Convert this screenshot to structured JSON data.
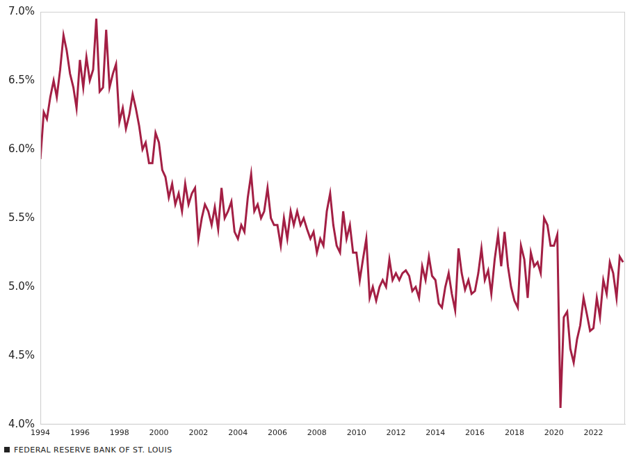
{
  "chart_data": {
    "type": "line",
    "annotations": [
      "FEDERAL RESERVE BANK OF ST. LOUIS"
    ],
    "x": [
      1994.0,
      1994.17,
      1994.33,
      1994.5,
      1994.67,
      1994.83,
      1995.0,
      1995.17,
      1995.33,
      1995.5,
      1995.67,
      1995.83,
      1996.0,
      1996.17,
      1996.33,
      1996.5,
      1996.67,
      1996.83,
      1997.0,
      1997.17,
      1997.33,
      1997.5,
      1997.67,
      1997.83,
      1998.0,
      1998.17,
      1998.33,
      1998.5,
      1998.67,
      1998.83,
      1999.0,
      1999.17,
      1999.33,
      1999.5,
      1999.67,
      1999.83,
      2000.0,
      2000.17,
      2000.33,
      2000.5,
      2000.67,
      2000.83,
      2001.0,
      2001.17,
      2001.33,
      2001.5,
      2001.67,
      2001.83,
      2002.0,
      2002.17,
      2002.33,
      2002.5,
      2002.67,
      2002.83,
      2003.0,
      2003.17,
      2003.33,
      2003.5,
      2003.67,
      2003.83,
      2004.0,
      2004.17,
      2004.33,
      2004.5,
      2004.67,
      2004.83,
      2005.0,
      2005.17,
      2005.33,
      2005.5,
      2005.67,
      2005.83,
      2006.0,
      2006.17,
      2006.33,
      2006.5,
      2006.67,
      2006.83,
      2007.0,
      2007.17,
      2007.33,
      2007.5,
      2007.67,
      2007.83,
      2008.0,
      2008.17,
      2008.33,
      2008.5,
      2008.67,
      2008.83,
      2009.0,
      2009.17,
      2009.33,
      2009.5,
      2009.67,
      2009.83,
      2010.0,
      2010.17,
      2010.33,
      2010.5,
      2010.67,
      2010.83,
      2011.0,
      2011.17,
      2011.33,
      2011.5,
      2011.67,
      2011.83,
      2012.0,
      2012.17,
      2012.33,
      2012.5,
      2012.67,
      2012.83,
      2013.0,
      2013.17,
      2013.33,
      2013.5,
      2013.67,
      2013.83,
      2014.0,
      2014.17,
      2014.33,
      2014.5,
      2014.67,
      2014.83,
      2015.0,
      2015.17,
      2015.33,
      2015.5,
      2015.67,
      2015.83,
      2016.0,
      2016.17,
      2016.33,
      2016.5,
      2016.67,
      2016.83,
      2017.0,
      2017.17,
      2017.33,
      2017.5,
      2017.67,
      2017.83,
      2018.0,
      2018.17,
      2018.33,
      2018.5,
      2018.67,
      2018.83,
      2019.0,
      2019.17,
      2019.33,
      2019.5,
      2019.67,
      2019.83,
      2020.0,
      2020.17,
      2020.33,
      2020.5,
      2020.67,
      2020.83,
      2021.0,
      2021.17,
      2021.33,
      2021.5,
      2021.67,
      2021.83,
      2022.0,
      2022.17,
      2022.33,
      2022.5,
      2022.67,
      2022.83,
      2023.0,
      2023.17,
      2023.33,
      2023.5
    ],
    "values": [
      5.93,
      6.27,
      6.22,
      6.38,
      6.5,
      6.38,
      6.58,
      6.83,
      6.72,
      6.55,
      6.45,
      6.3,
      6.65,
      6.45,
      6.67,
      6.5,
      6.58,
      6.95,
      6.42,
      6.45,
      6.87,
      6.45,
      6.55,
      6.62,
      6.2,
      6.3,
      6.15,
      6.25,
      6.4,
      6.3,
      6.17,
      6.0,
      6.05,
      5.9,
      5.9,
      6.12,
      6.05,
      5.85,
      5.8,
      5.65,
      5.75,
      5.6,
      5.68,
      5.55,
      5.75,
      5.6,
      5.68,
      5.72,
      5.35,
      5.5,
      5.6,
      5.55,
      5.45,
      5.58,
      5.42,
      5.72,
      5.5,
      5.55,
      5.62,
      5.4,
      5.35,
      5.45,
      5.4,
      5.65,
      5.82,
      5.55,
      5.6,
      5.5,
      5.55,
      5.72,
      5.5,
      5.45,
      5.45,
      5.3,
      5.5,
      5.35,
      5.55,
      5.45,
      5.55,
      5.45,
      5.5,
      5.42,
      5.35,
      5.4,
      5.25,
      5.35,
      5.3,
      5.55,
      5.68,
      5.45,
      5.3,
      5.25,
      5.55,
      5.35,
      5.45,
      5.25,
      5.25,
      5.05,
      5.2,
      5.35,
      4.92,
      5.0,
      4.9,
      5.0,
      5.05,
      5.0,
      5.2,
      5.05,
      5.1,
      5.05,
      5.1,
      5.12,
      5.08,
      4.97,
      5.0,
      4.92,
      5.15,
      5.05,
      5.22,
      5.08,
      5.05,
      4.88,
      4.85,
      5.0,
      5.1,
      4.95,
      4.83,
      5.28,
      5.1,
      4.98,
      5.05,
      4.95,
      4.97,
      5.1,
      5.28,
      5.05,
      5.12,
      4.95,
      5.2,
      5.38,
      5.15,
      5.4,
      5.15,
      5.0,
      4.9,
      4.85,
      5.3,
      5.2,
      4.92,
      5.25,
      5.15,
      5.18,
      5.1,
      5.5,
      5.45,
      5.3,
      5.3,
      5.38,
      4.12,
      4.78,
      4.82,
      4.55,
      4.45,
      4.62,
      4.72,
      4.92,
      4.8,
      4.68,
      4.7,
      4.92,
      4.78,
      5.05,
      4.95,
      5.18,
      5.1,
      4.92,
      5.22,
      5.18
    ],
    "color": "#a31f44",
    "xlim": [
      1994,
      2023.6
    ],
    "xticks": [
      1994,
      1996,
      1998,
      2000,
      2002,
      2004,
      2006,
      2008,
      2010,
      2012,
      2014,
      2016,
      2018,
      2020,
      2022
    ],
    "ylim": [
      4.0,
      7.0
    ],
    "yticks": [
      {
        "value": 4.0,
        "label": "4.0%"
      },
      {
        "value": 4.5,
        "label": "4.5%"
      },
      {
        "value": 5.0,
        "label": "5.0%"
      },
      {
        "value": 5.5,
        "label": "5.5%"
      },
      {
        "value": 6.0,
        "label": "6.0%"
      },
      {
        "value": 6.5,
        "label": "6.5%"
      },
      {
        "value": 7.0,
        "label": "7.0%"
      }
    ],
    "grid": false
  }
}
